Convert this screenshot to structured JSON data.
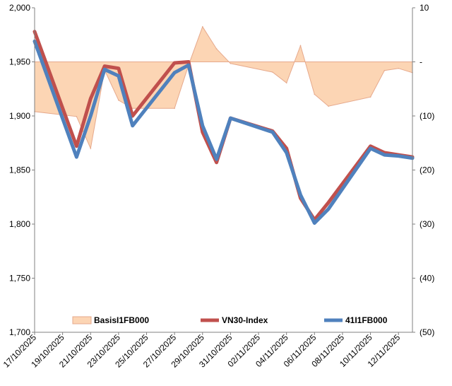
{
  "chart_data": {
    "type": "line",
    "dates": [
      "17/10/2025",
      "20/10/2025",
      "21/10/2025",
      "22/10/2025",
      "23/10/2025",
      "24/10/2025",
      "27/10/2025",
      "28/10/2025",
      "29/10/2025",
      "30/10/2025",
      "31/10/2025",
      "03/11/2025",
      "04/11/2025",
      "05/11/2025",
      "06/11/2025",
      "07/11/2025",
      "10/11/2025",
      "11/11/2025",
      "12/11/2025",
      "13/11/2025"
    ],
    "x_tick_labels": [
      "17/10/2025",
      "19/10/2025",
      "21/10/2025",
      "23/10/2025",
      "25/10/2025",
      "27/10/2025",
      "29/10/2025",
      "31/10/2025",
      "02/11/2025",
      "04/11/2025",
      "06/11/2025",
      "08/11/2025",
      "10/11/2025",
      "12/11/2025"
    ],
    "x_range": [
      "17/10/2025",
      "13/11/2025"
    ],
    "left_axis": {
      "min": 1700,
      "max": 2000,
      "step": 50,
      "tick_labels": [
        "1,700",
        "1,750",
        "1,800",
        "1,850",
        "1,900",
        "1,950",
        "2,000"
      ]
    },
    "right_axis": {
      "min": -50,
      "max": 10,
      "step": 10,
      "tick_labels": [
        "(50)",
        "(40)",
        "(30)",
        "(20)",
        "(10)",
        "-",
        "10"
      ]
    },
    "series": [
      {
        "name": "BasisI1FB000",
        "kind": "area",
        "axis": "right",
        "color": "#fcd5b4",
        "edge_color": "#e6a98c",
        "values": [
          -9.2,
          -10.1,
          -16,
          -1.5,
          -7.1,
          -8.6,
          -8.6,
          -0.6,
          6.5,
          2.4,
          -0.3,
          -1.9,
          -3.9,
          3.0,
          -6.0,
          -8.2,
          -6.5,
          -1.6,
          -1.2,
          -2.0
        ]
      },
      {
        "name": "VN30-Index",
        "kind": "line",
        "axis": "left",
        "color": "#c0504d",
        "values": [
          1978,
          1872,
          1916,
          1946,
          1944,
          1900,
          1949,
          1950,
          1885,
          1857,
          1898,
          1886,
          1870,
          1824,
          1804,
          1820,
          1872,
          1866,
          1864,
          1862
        ]
      },
      {
        "name": "41I1FB000",
        "kind": "line",
        "axis": "left",
        "color": "#4f81bd",
        "values": [
          1969,
          1862,
          1900,
          1943,
          1937,
          1891,
          1940,
          1947,
          1891,
          1860,
          1898,
          1885,
          1866,
          1827,
          1801,
          1814,
          1870,
          1864,
          1863,
          1861
        ]
      }
    ],
    "legend": {
      "position": "bottom-inside",
      "entries": [
        "BasisI1FB000",
        "VN30-Index",
        "41I1FB000"
      ]
    },
    "grid": false
  }
}
